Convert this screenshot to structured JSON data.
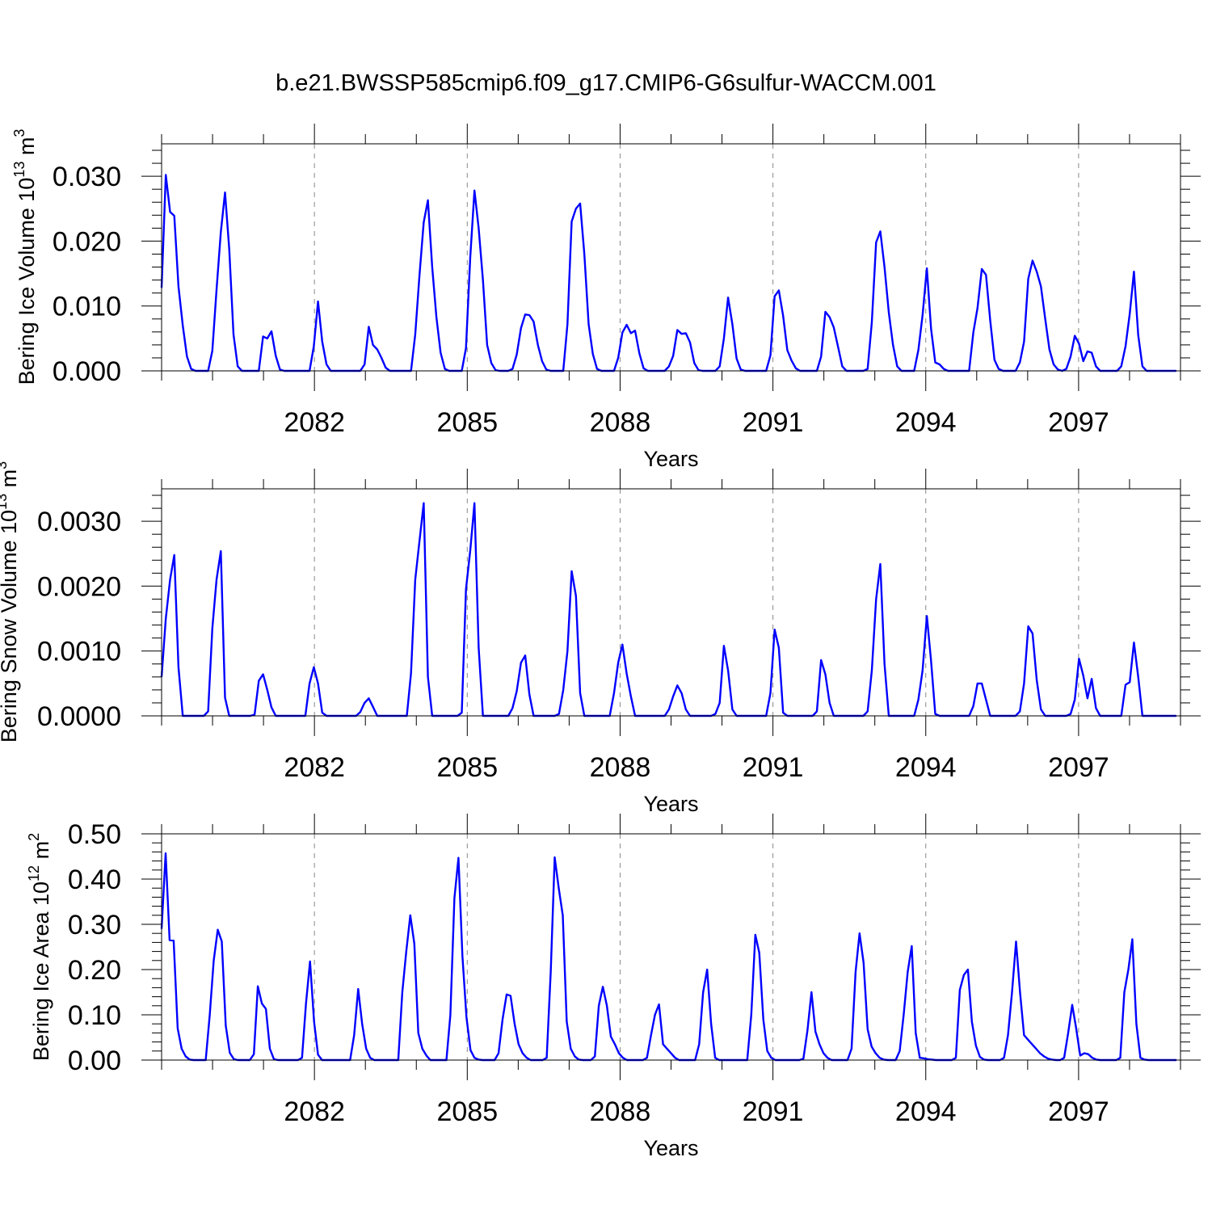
{
  "figure": {
    "title": "b.e21.BWSSP585cmip6.f09_g17.CMIP6-G6sulfur-WACCM.001"
  },
  "colors": {
    "series": "#0000ff",
    "axis": "#000000",
    "grid": "#888888"
  },
  "chart_data": [
    {
      "type": "line",
      "title": "",
      "xlabel": "Years",
      "ylabel": "Bering Ice Volume 10",
      "ylabel_sup": "13",
      "ylabel_unit": " m",
      "ylabel_unit_sup": "3",
      "xlim": [
        2079,
        2099
      ],
      "ylim": [
        0,
        0.035
      ],
      "xticks": [
        "2082",
        "2085",
        "2088",
        "2091",
        "2094",
        "2097"
      ],
      "yticks": [
        "0.000",
        "0.010",
        "0.020",
        "0.030"
      ],
      "ytick_values": [
        0,
        0.01,
        0.02,
        0.03
      ],
      "grid": "dashed vertical lines at labeled years",
      "series": [
        {
          "color": "#0000ff",
          "values": [
            0.0128,
            0.0302,
            0.0245,
            0.0239,
            0.013,
            0.007,
            0.0022,
            0.0003,
            0.0,
            0.0,
            0.0,
            0.0,
            0.0031,
            0.0125,
            0.0214,
            0.0275,
            0.0188,
            0.0056,
            0.0007,
            0.0,
            0.0,
            0.0,
            0.0,
            0.0,
            0.0053,
            0.005,
            0.0061,
            0.0023,
            0.0002,
            0.0,
            0.0,
            0.0,
            0.0,
            0.0,
            0.0,
            0.0,
            0.0038,
            0.0107,
            0.0045,
            0.001,
            0.0,
            0.0,
            0.0,
            0.0,
            0.0,
            0.0,
            0.0,
            0.0,
            0.001,
            0.0068,
            0.004,
            0.0033,
            0.002,
            0.0005,
            0.0,
            0.0,
            0.0,
            0.0,
            0.0,
            0.0,
            0.0056,
            0.0148,
            0.0229,
            0.0263,
            0.016,
            0.0083,
            0.0028,
            0.0003,
            0.0,
            0.0,
            0.0,
            0.0,
            0.0035,
            0.0175,
            0.0278,
            0.022,
            0.014,
            0.004,
            0.0012,
            0.0001,
            0.0,
            0.0,
            0.0,
            0.0003,
            0.0025,
            0.0066,
            0.0087,
            0.0086,
            0.0076,
            0.004,
            0.0015,
            0.0002,
            0.0,
            0.0,
            0.0,
            0.0,
            0.0072,
            0.023,
            0.025,
            0.0258,
            0.018,
            0.0072,
            0.0026,
            0.0003,
            0.0,
            0.0,
            0.0,
            0.0,
            0.002,
            0.0059,
            0.0071,
            0.0058,
            0.0062,
            0.0027,
            0.0004,
            0.0,
            0.0,
            0.0,
            0.0,
            0.0,
            0.0007,
            0.0023,
            0.0063,
            0.0057,
            0.0058,
            0.0044,
            0.0012,
            0.0001,
            0.0,
            0.0,
            0.0,
            0.0,
            0.0007,
            0.005,
            0.0113,
            0.0072,
            0.0019,
            0.0002,
            0.0,
            0.0,
            0.0,
            0.0,
            0.0,
            0.0,
            0.0024,
            0.0115,
            0.0124,
            0.0085,
            0.0032,
            0.0016,
            0.0004,
            0.0,
            0.0,
            0.0,
            0.0,
            0.0,
            0.0022,
            0.0091,
            0.0083,
            0.0067,
            0.0037,
            0.0007,
            0.0,
            0.0,
            0.0,
            0.0,
            0.0,
            0.0003,
            0.0075,
            0.0198,
            0.0215,
            0.016,
            0.009,
            0.004,
            0.0007,
            0.0,
            0.0,
            0.0,
            0.0,
            0.0032,
            0.0086,
            0.0158,
            0.0065,
            0.0013,
            0.001,
            0.0003,
            0.0,
            0.0,
            0.0,
            0.0,
            0.0,
            0.0,
            0.0059,
            0.0097,
            0.0157,
            0.0148,
            0.0078,
            0.0017,
            0.0003,
            0.0,
            0.0,
            0.0,
            0.0,
            0.0013,
            0.0045,
            0.0142,
            0.017,
            0.0153,
            0.013,
            0.008,
            0.0033,
            0.001,
            0.0002,
            0.0,
            0.0003,
            0.0022,
            0.0054,
            0.0042,
            0.0015,
            0.003,
            0.0028,
            0.0007,
            0.0,
            0.0,
            0.0,
            0.0,
            0.0,
            0.0007,
            0.0038,
            0.0088,
            0.0153,
            0.0055,
            0.0007,
            0.0,
            0.0,
            0.0,
            0.0,
            0.0,
            0.0,
            0.0,
            0.0
          ]
        }
      ]
    },
    {
      "type": "line",
      "title": "",
      "xlabel": "Years",
      "ylabel": "Bering Snow Volume 10",
      "ylabel_sup": "13",
      "ylabel_unit": " m",
      "ylabel_unit_sup": "3",
      "xlim": [
        2079,
        2099
      ],
      "ylim": [
        0,
        0.0035
      ],
      "xticks": [
        "2082",
        "2085",
        "2088",
        "2091",
        "2094",
        "2097"
      ],
      "yticks": [
        "0.0000",
        "0.0010",
        "0.0020",
        "0.0030"
      ],
      "ytick_values": [
        0,
        0.001,
        0.002,
        0.003
      ],
      "grid": "dashed vertical lines at labeled years",
      "series": [
        {
          "color": "#0000ff",
          "values": [
            0.0006,
            0.0015,
            0.0021,
            0.00248,
            0.00075,
            0.0,
            0.0,
            0.0,
            0.0,
            0.0,
            0.0,
            7e-05,
            0.00135,
            0.0021,
            0.00254,
            0.00028,
            0.0,
            0.0,
            0.0,
            0.0,
            0.0,
            0.0,
            2e-05,
            0.00054,
            0.00064,
            0.0004,
            0.00013,
            0.0,
            0.0,
            0.0,
            0.0,
            0.0,
            0.0,
            0.0,
            0.0,
            0.0005,
            0.00075,
            0.0005,
            5e-05,
            0.0,
            0.0,
            0.0,
            0.0,
            0.0,
            0.0,
            0.0,
            0.0,
            6e-05,
            0.0002,
            0.00027,
            0.00014,
            0.0,
            0.0,
            0.0,
            0.0,
            0.0,
            0.0,
            0.0,
            0.0,
            0.00066,
            0.0021,
            0.0027,
            0.00328,
            0.0006,
            0.0,
            0.0,
            0.0,
            0.0,
            0.0,
            0.0,
            0.0,
            5e-05,
            0.00195,
            0.00255,
            0.00328,
            0.00105,
            0.0,
            0.0,
            0.0,
            0.0,
            0.0,
            0.0,
            0.0,
            0.00012,
            0.00038,
            0.00082,
            0.00093,
            0.00033,
            0.0,
            0.0,
            0.0,
            0.0,
            0.0,
            0.0,
            3e-05,
            0.0004,
            0.001,
            0.00223,
            0.00185,
            0.00035,
            0.0,
            0.0,
            0.0,
            0.0,
            0.0,
            0.0,
            0.0,
            0.00035,
            0.00082,
            0.0011,
            0.00065,
            0.0003,
            0.0,
            0.0,
            0.0,
            0.0,
            0.0,
            0.0,
            0.0,
            0.0,
            0.0001,
            0.0003,
            0.00047,
            0.00035,
            0.0001,
            0.0,
            0.0,
            0.0,
            0.0,
            0.0,
            0.0,
            3e-05,
            0.0002,
            0.00108,
            0.0007,
            0.0001,
            0.0,
            0.0,
            0.0,
            0.0,
            0.0,
            0.0,
            0.0,
            0.0,
            0.00035,
            0.00133,
            0.00105,
            5e-05,
            0.0,
            0.0,
            0.0,
            0.0,
            0.0,
            0.0,
            0.0,
            7e-05,
            0.00086,
            0.00064,
            0.0002,
            0.0,
            0.0,
            0.0,
            0.0,
            0.0,
            0.0,
            0.0,
            0.0,
            7e-05,
            0.0007,
            0.0018,
            0.00234,
            0.0008,
            0.0,
            0.0,
            0.0,
            0.0,
            0.0,
            0.0,
            0.0,
            0.00025,
            0.0007,
            0.00154,
            0.00085,
            3e-05,
            0.0,
            0.0,
            0.0,
            0.0,
            0.0,
            0.0,
            0.0,
            0.0,
            0.00015,
            0.0005,
            0.0005,
            0.00025,
            0.0,
            0.0,
            0.0,
            0.0,
            0.0,
            0.0,
            0.0,
            7e-05,
            0.0005,
            0.00138,
            0.00127,
            0.00055,
            0.0001,
            0.0,
            0.0,
            0.0,
            0.0,
            0.0,
            0.0,
            3e-05,
            0.00025,
            0.00088,
            0.00062,
            0.00027,
            0.00057,
            0.00012,
            0.0,
            0.0,
            0.0,
            0.0,
            0.0,
            0.0,
            0.00048,
            0.00052,
            0.00113,
            0.0006,
            0.0,
            0.0,
            0.0,
            0.0,
            0.0,
            0.0,
            0.0,
            0.0,
            0.0
          ]
        }
      ]
    },
    {
      "type": "line",
      "title": "",
      "xlabel": "Years",
      "ylabel": "Bering Ice Area 10",
      "ylabel_sup": "12",
      "ylabel_unit": " m",
      "ylabel_unit_sup": "2",
      "xlim": [
        2079,
        2099
      ],
      "ylim": [
        0,
        0.5
      ],
      "xticks": [
        "2082",
        "2085",
        "2088",
        "2091",
        "2094",
        "2097"
      ],
      "yticks": [
        "0.00",
        "0.10",
        "0.20",
        "0.30",
        "0.40",
        "0.50"
      ],
      "ytick_values": [
        0,
        0.1,
        0.2,
        0.3,
        0.4,
        0.5
      ],
      "grid": "dashed vertical lines at labeled years",
      "series": [
        {
          "color": "#0000ff",
          "values": [
            0.29,
            0.457,
            0.265,
            0.264,
            0.07,
            0.025,
            0.008,
            0.001,
            0.0,
            0.0,
            0.0,
            0.0,
            0.1,
            0.22,
            0.288,
            0.262,
            0.076,
            0.016,
            0.002,
            0.0,
            0.0,
            0.0,
            0.0,
            0.013,
            0.163,
            0.125,
            0.113,
            0.025,
            0.002,
            0.0,
            0.0,
            0.0,
            0.0,
            0.0,
            0.0,
            0.005,
            0.125,
            0.218,
            0.085,
            0.012,
            0.0,
            0.0,
            0.0,
            0.0,
            0.0,
            0.0,
            0.0,
            0.0,
            0.055,
            0.157,
            0.08,
            0.025,
            0.005,
            0.0,
            0.0,
            0.0,
            0.0,
            0.0,
            0.0,
            0.0,
            0.15,
            0.24,
            0.32,
            0.257,
            0.06,
            0.025,
            0.01,
            0.0,
            0.0,
            0.0,
            0.0,
            0.0,
            0.1,
            0.358,
            0.447,
            0.23,
            0.095,
            0.022,
            0.005,
            0.001,
            0.0,
            0.0,
            0.0,
            0.0,
            0.015,
            0.09,
            0.145,
            0.142,
            0.08,
            0.035,
            0.015,
            0.005,
            0.0,
            0.0,
            0.0,
            0.0,
            0.005,
            0.195,
            0.448,
            0.38,
            0.32,
            0.085,
            0.025,
            0.008,
            0.001,
            0.0,
            0.0,
            0.0,
            0.008,
            0.12,
            0.162,
            0.12,
            0.052,
            0.035,
            0.015,
            0.005,
            0.0,
            0.0,
            0.0,
            0.0,
            0.0,
            0.005,
            0.055,
            0.1,
            0.123,
            0.035,
            0.025,
            0.015,
            0.005,
            0.0,
            0.0,
            0.0,
            0.0,
            0.0,
            0.035,
            0.15,
            0.2,
            0.08,
            0.005,
            0.0,
            0.0,
            0.0,
            0.0,
            0.0,
            0.0,
            0.0,
            0.0,
            0.1,
            0.277,
            0.237,
            0.09,
            0.02,
            0.005,
            0.0,
            0.0,
            0.0,
            0.0,
            0.0,
            0.0,
            0.0,
            0.003,
            0.065,
            0.15,
            0.063,
            0.035,
            0.015,
            0.005,
            0.0,
            0.0,
            0.0,
            0.0,
            0.0,
            0.025,
            0.195,
            0.28,
            0.215,
            0.068,
            0.03,
            0.015,
            0.005,
            0.001,
            0.0,
            0.0,
            0.0,
            0.02,
            0.1,
            0.195,
            0.252,
            0.06,
            0.005,
            0.004,
            0.002,
            0.001,
            0.0,
            0.0,
            0.0,
            0.0,
            0.0,
            0.005,
            0.155,
            0.188,
            0.2,
            0.085,
            0.032,
            0.007,
            0.001,
            0.0,
            0.0,
            0.0,
            0.0,
            0.005,
            0.055,
            0.15,
            0.262,
            0.15,
            0.055,
            0.045,
            0.035,
            0.025,
            0.015,
            0.008,
            0.003,
            0.001,
            0.0,
            0.0,
            0.005,
            0.06,
            0.122,
            0.07,
            0.01,
            0.015,
            0.013,
            0.005,
            0.001,
            0.0,
            0.0,
            0.0,
            0.0,
            0.0,
            0.005,
            0.15,
            0.2,
            0.267,
            0.08,
            0.005,
            0.001,
            0.0,
            0.0,
            0.0,
            0.0,
            0.0,
            0.0,
            0.0,
            0.0
          ]
        }
      ]
    }
  ]
}
